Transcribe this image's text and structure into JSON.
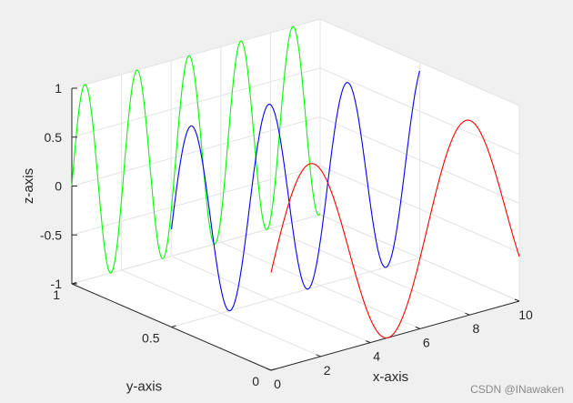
{
  "chart_data": {
    "type": "line",
    "view": "3d",
    "title": "",
    "xlabel": "x-axis",
    "ylabel": "y-axis",
    "zlabel": "z-axis",
    "xlim": [
      0,
      10
    ],
    "ylim": [
      0,
      1
    ],
    "zlim": [
      -1,
      1
    ],
    "xticks": [
      "0",
      "2",
      "4",
      "6",
      "8",
      "10"
    ],
    "yticks": [
      "0",
      "0.5",
      "1"
    ],
    "zticks": [
      "-1",
      "-0.5",
      "0",
      "0.5",
      "1"
    ],
    "grid": true,
    "series": [
      {
        "color": "#00ff00",
        "y_position": 1.0,
        "function": "sin(3x)",
        "x_range": [
          0,
          10
        ]
      },
      {
        "color": "#0000ff",
        "y_position": 0.5,
        "function": "sin(2x)",
        "x_range": [
          0,
          10
        ]
      },
      {
        "color": "#ff0000",
        "y_position": 0.0,
        "function": "sin(x)",
        "x_range": [
          0,
          10
        ]
      }
    ]
  },
  "watermark": "CSDN @INawaken"
}
